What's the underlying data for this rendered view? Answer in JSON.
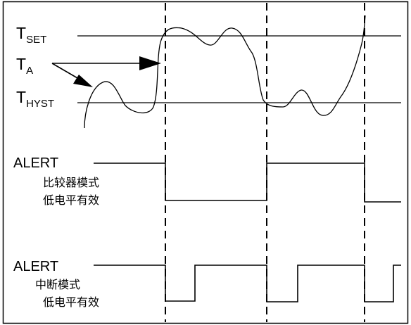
{
  "labels": {
    "t_set_main": "T",
    "t_set_sub": "SET",
    "t_a_main": "T",
    "t_a_sub": "A",
    "t_hyst_main": "T",
    "t_hyst_sub": "HYST",
    "alert_comparator": "ALERT",
    "comparator_mode_line1": "比较器模式",
    "comparator_mode_line2": "低电平有效",
    "alert_interrupt": "ALERT",
    "interrupt_mode_line1": "中断模式",
    "interrupt_mode_line2": "低电平有效"
  },
  "colors": {
    "line": "#000000",
    "background": "#ffffff"
  }
}
